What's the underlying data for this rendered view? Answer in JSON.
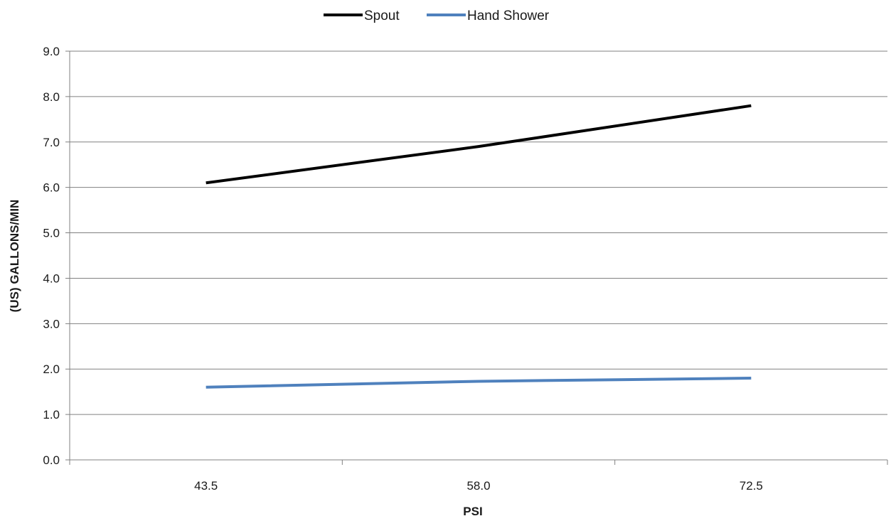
{
  "chart_data": {
    "type": "line",
    "categories": [
      "43.5",
      "58.0",
      "72.5"
    ],
    "series": [
      {
        "name": "Spout",
        "values": [
          6.1,
          6.9,
          7.8
        ],
        "color": "#000000"
      },
      {
        "name": "Hand Shower",
        "values": [
          1.6,
          1.73,
          1.8
        ],
        "color": "#4f81bd"
      }
    ],
    "y_ticks": [
      "0.0",
      "1.0",
      "2.0",
      "3.0",
      "4.0",
      "5.0",
      "6.0",
      "7.0",
      "8.0",
      "9.0"
    ],
    "ylim": [
      0,
      9
    ],
    "xlabel": "PSI",
    "ylabel": "(US) GALLONS/MIN",
    "legend_position": "top",
    "grid": "horizontal",
    "gridline_color": "#808080"
  }
}
